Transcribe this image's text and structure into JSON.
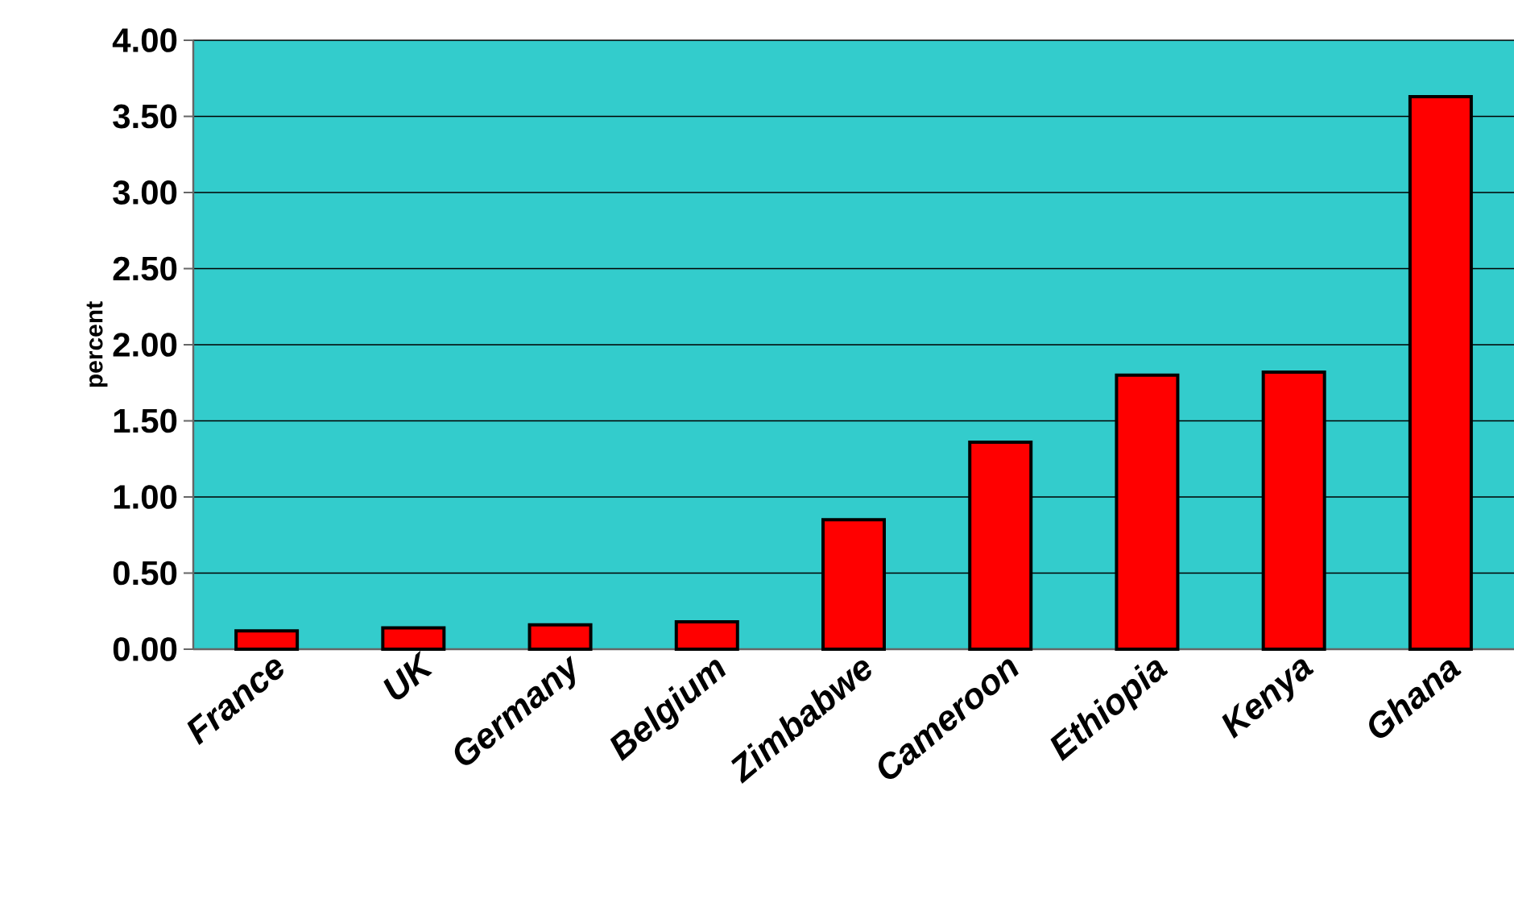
{
  "chart_data": {
    "type": "bar",
    "ylabel": "percent",
    "categories": [
      "France",
      "UK",
      "Germany",
      "Belgium",
      "Zimbabwe",
      "Cameroon",
      "Ethiopia",
      "Kenya",
      "Ghana"
    ],
    "values": [
      0.12,
      0.14,
      0.16,
      0.18,
      0.85,
      1.36,
      1.8,
      1.82,
      3.63
    ],
    "color": "#ff0000",
    "ylim": [
      0,
      4
    ],
    "yticks": [
      {
        "value": 0,
        "label": "0.00"
      },
      {
        "value": 0.5,
        "label": "0.50"
      },
      {
        "value": 1,
        "label": "1.00"
      },
      {
        "value": 1.5,
        "label": "1.50"
      },
      {
        "value": 2,
        "label": "2.00"
      },
      {
        "value": 2.5,
        "label": "2.50"
      },
      {
        "value": 3,
        "label": "3.00"
      },
      {
        "value": 3.5,
        "label": "3.50"
      },
      {
        "value": 4,
        "label": "4.00"
      }
    ],
    "grid": "y"
  }
}
